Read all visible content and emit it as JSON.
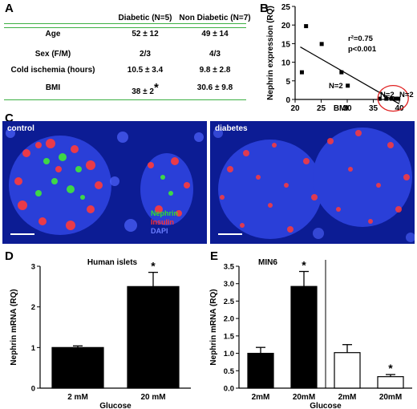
{
  "panels": {
    "a": "A",
    "b": "B",
    "c": "C",
    "d": "D",
    "e": "E"
  },
  "table": {
    "columns": [
      "",
      "Diabetic (N=5)",
      "Non Diabetic (N=7)"
    ],
    "rows": [
      {
        "label": "Age",
        "diabetic": "52 ± 12",
        "non_diabetic": "49 ± 14"
      },
      {
        "label": "Sex (F/M)",
        "diabetic": "2/3",
        "non_diabetic": "4/3"
      },
      {
        "label": "Cold ischemia (hours)",
        "diabetic": "10.5 ± 3.4",
        "non_diabetic": "9.8 ± 2.8"
      },
      {
        "label": "BMI",
        "diabetic": "38 ± 2",
        "non_diabetic": "30.6 ± 9.8",
        "diabetic_marker": "*"
      }
    ],
    "line_color": "#3cb043"
  },
  "chart_data": [
    {
      "type": "scatter",
      "panel": "B",
      "ylabel": "Nephrin expression  (RQ)",
      "xlabel": "BMI",
      "xlim": [
        20,
        40
      ],
      "ylim": [
        0,
        25
      ],
      "xticks": [
        "20",
        "25",
        "30",
        "35",
        "40"
      ],
      "yticks": [
        "0",
        "5",
        "10",
        "15",
        "20",
        "25"
      ],
      "points": [
        {
          "x": 21.3,
          "y": 7.3
        },
        {
          "x": 22.1,
          "y": 19.7
        },
        {
          "x": 25.1,
          "y": 14.9
        },
        {
          "x": 28.9,
          "y": 7.3
        },
        {
          "x": 30.1,
          "y": 3.7
        },
        {
          "x": 36.2,
          "y": 0.2
        },
        {
          "x": 37.5,
          "y": 0.2
        },
        {
          "x": 38.5,
          "y": 0.2
        },
        {
          "x": 39.3,
          "y": 0.2
        },
        {
          "x": 39.8,
          "y": 0.2
        }
      ],
      "fit_line": {
        "x": [
          21,
          40
        ],
        "y": [
          14.1,
          -1.2
        ]
      },
      "annotations": [
        "r²=0.75",
        "p<0.001",
        "N=2",
        "N=2",
        "N=2"
      ],
      "highlight_circle_color": "#e02020"
    },
    {
      "type": "bar",
      "panel": "D",
      "title": "Human islets",
      "ylabel": "Nephrin mRNA (RQ)",
      "xlabel": "Glucose",
      "categories": [
        "2 mM",
        "20 mM"
      ],
      "values": [
        1.0,
        2.5
      ],
      "errors": [
        0.04,
        0.35
      ],
      "ylim": [
        0,
        3
      ],
      "yticks": [
        "0",
        "1",
        "2",
        "3"
      ],
      "significance": [
        "",
        "*"
      ]
    },
    {
      "type": "bar",
      "panel": "E",
      "title": "MIN6",
      "ylabel": "Nephrin mRNA (RQ)",
      "xlabel": "Glucose",
      "categories": [
        "2mM",
        "20mM",
        "2mM",
        "20mM"
      ],
      "values": [
        1.0,
        2.92,
        1.02,
        0.33
      ],
      "errors": [
        0.17,
        0.43,
        0.23,
        0.06
      ],
      "fills": [
        "#000000",
        "#000000",
        "#ffffff",
        "#ffffff"
      ],
      "ylim": [
        0,
        3.5
      ],
      "yticks": [
        "0.0",
        "0.5",
        "1.0",
        "1.5",
        "2.0",
        "2.5",
        "3.0",
        "3.5"
      ],
      "significance": [
        "",
        "*",
        "",
        "*"
      ]
    }
  ],
  "micrographs": {
    "left_label": "control",
    "right_label": "diabetes",
    "legend": [
      {
        "text": "Nephrin",
        "color": "#33dd33"
      },
      {
        "text": "Insulin",
        "color": "#ff3030"
      },
      {
        "text": "DAPI",
        "color": "#6a7dff"
      }
    ]
  }
}
